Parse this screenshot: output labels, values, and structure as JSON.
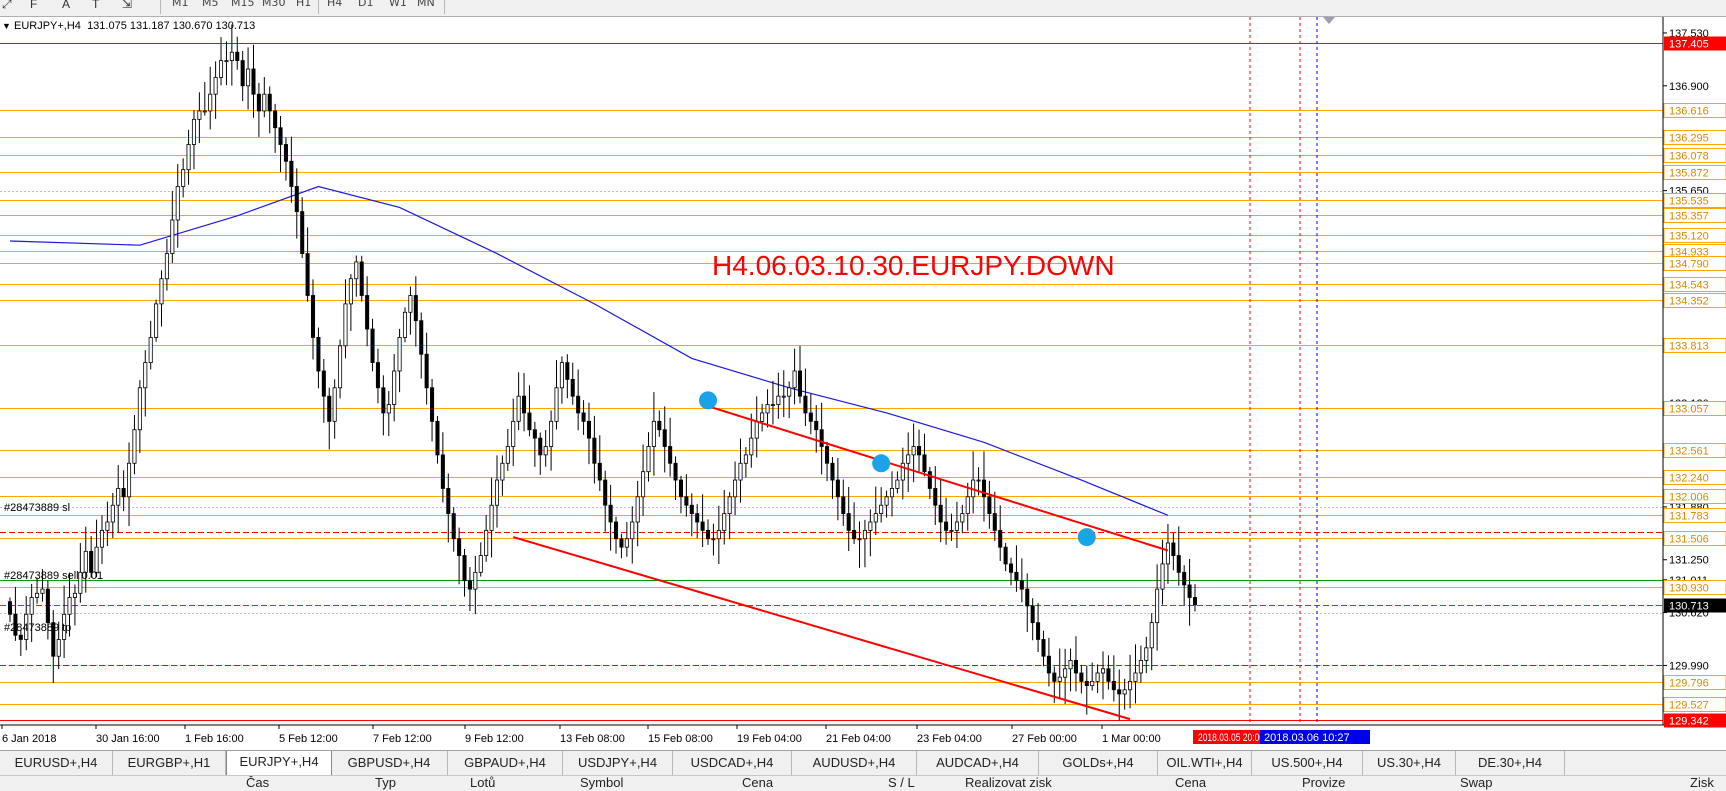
{
  "toolbar": {
    "timeframes": [
      "M1",
      "M5",
      "M15",
      "M30",
      "H1",
      "H4",
      "D1",
      "W1",
      "MN"
    ]
  },
  "chart_header": {
    "symbol": "EURJPY+,H4",
    "ohlc": "131.075 131.187 130.670 130.713"
  },
  "annotation_text": "H4.06.03.10.30.EURJPY.DOWN",
  "order_labels": {
    "sl": "#28473889 sl",
    "sell": "#28473889 sell 0.01",
    "tp": "#28473889 tp"
  },
  "colors": {
    "orange_level": "#ffa500",
    "red": "#ff0000",
    "ma": "#1a1ad8",
    "marker": "#1aa3e8",
    "green": "#009900"
  },
  "price_axis": {
    "scale_labels": [
      {
        "price": 137.53,
        "label": "137.530"
      },
      {
        "price": 136.9,
        "label": "136.900"
      },
      {
        "price": 135.65,
        "label": "135.650"
      },
      {
        "price": 133.12,
        "label": "133.120"
      },
      {
        "price": 131.88,
        "label": "131.880"
      },
      {
        "price": 131.25,
        "label": "131.250"
      },
      {
        "price": 131.011,
        "label": "131.011"
      },
      {
        "price": 130.62,
        "label": "130.620"
      },
      {
        "price": 129.99,
        "label": "129.990"
      }
    ],
    "orange_levels": [
      {
        "price": 136.616,
        "label": "136.616"
      },
      {
        "price": 136.295,
        "label": "136.295"
      },
      {
        "price": 136.078,
        "label": "136.078"
      },
      {
        "price": 135.872,
        "label": "135.872"
      },
      {
        "price": 135.535,
        "label": "135.535"
      },
      {
        "price": 135.357,
        "label": "135.357"
      },
      {
        "price": 135.12,
        "label": "135.120"
      },
      {
        "price": 134.933,
        "label": "134.933"
      },
      {
        "price": 134.79,
        "label": "134.790"
      },
      {
        "price": 134.543,
        "label": "134.543"
      },
      {
        "price": 134.352,
        "label": "134.352"
      },
      {
        "price": 133.813,
        "label": "133.813"
      },
      {
        "price": 133.057,
        "label": "133.057"
      },
      {
        "price": 132.561,
        "label": "132.561"
      },
      {
        "price": 132.24,
        "label": "132.240"
      },
      {
        "price": 132.006,
        "label": "132.006"
      },
      {
        "price": 131.783,
        "label": "131.783"
      },
      {
        "price": 131.506,
        "label": "131.506"
      },
      {
        "price": 130.93,
        "label": "130.930"
      },
      {
        "price": 129.796,
        "label": "129.796"
      },
      {
        "price": 129.527,
        "label": "129.527"
      }
    ],
    "red_levels": [
      {
        "price": 137.405,
        "label": "137.405"
      },
      {
        "price": 129.342,
        "label": "129.342"
      }
    ],
    "current_price": {
      "price": 130.713,
      "label": "130.713"
    }
  },
  "time_axis": {
    "labels": [
      "6 Jan 2018",
      "30 Jan 16:00",
      "1 Feb 16:00",
      "5 Feb 12:00",
      "7 Feb 12:00",
      "9 Feb 12:00",
      "13 Feb 08:00",
      "15 Feb 08:00",
      "19 Feb 04:00",
      "21 Feb 04:00",
      "23 Feb 04:00",
      "27 Feb 00:00",
      "1 Mar 00:00"
    ],
    "marker_red": "2018.03.05 20:00",
    "marker_blue": "2018.03.06 10:27"
  },
  "chart_data": {
    "type": "candlestick",
    "symbol": "EURJPY+",
    "timeframe": "H4",
    "ylim": [
      129.28,
      137.72
    ],
    "close_series": [
      130.6,
      130.35,
      130.3,
      130.6,
      130.8,
      130.85,
      130.9,
      130.5,
      130.1,
      130.3,
      130.6,
      130.8,
      130.85,
      131.1,
      131.35,
      131.1,
      131.4,
      131.6,
      131.7,
      131.9,
      132.1,
      132.0,
      132.4,
      132.8,
      133.3,
      133.6,
      133.9,
      134.3,
      134.6,
      134.9,
      135.3,
      135.7,
      135.9,
      136.2,
      136.5,
      136.6,
      136.6,
      136.8,
      137.0,
      137.2,
      137.2,
      137.3,
      137.2,
      136.9,
      137.1,
      136.8,
      136.6,
      136.8,
      136.6,
      136.4,
      136.2,
      136.0,
      135.7,
      135.4,
      134.9,
      134.4,
      133.9,
      133.5,
      133.2,
      132.9,
      133.3,
      133.8,
      134.3,
      134.6,
      134.8,
      134.4,
      134.0,
      133.6,
      133.3,
      133.0,
      133.1,
      133.5,
      133.9,
      134.2,
      134.4,
      134.1,
      133.7,
      133.3,
      132.9,
      132.5,
      132.1,
      131.8,
      131.5,
      131.3,
      131.0,
      130.9,
      131.1,
      131.3,
      131.6,
      131.9,
      132.2,
      132.4,
      132.6,
      132.9,
      133.2,
      133.0,
      132.8,
      132.7,
      132.5,
      132.6,
      132.9,
      133.3,
      133.6,
      133.4,
      133.2,
      133.0,
      132.9,
      132.7,
      132.4,
      132.2,
      131.9,
      131.7,
      131.5,
      131.4,
      131.5,
      131.7,
      132.0,
      132.3,
      132.6,
      132.9,
      132.8,
      132.6,
      132.4,
      132.2,
      132.0,
      131.9,
      131.8,
      131.7,
      131.6,
      131.5,
      131.5,
      131.6,
      131.8,
      132.0,
      132.2,
      132.4,
      132.5,
      132.7,
      132.9,
      133.0,
      133.1,
      133.1,
      133.2,
      133.2,
      133.3,
      133.5,
      133.2,
      133.0,
      132.9,
      132.8,
      132.6,
      132.4,
      132.2,
      132.0,
      131.8,
      131.6,
      131.5,
      131.5,
      131.6,
      131.7,
      131.8,
      131.9,
      132.0,
      132.1,
      132.2,
      132.4,
      132.5,
      132.6,
      132.5,
      132.3,
      132.1,
      131.9,
      131.7,
      131.6,
      131.6,
      131.7,
      131.8,
      132.0,
      132.2,
      132.2,
      132.0,
      131.8,
      131.6,
      131.4,
      131.2,
      131.1,
      131.0,
      130.9,
      130.7,
      130.5,
      130.3,
      130.1,
      129.9,
      129.8,
      129.85,
      129.95,
      130.05,
      129.9,
      129.8,
      129.75,
      129.8,
      129.9,
      129.95,
      129.8,
      129.7,
      129.65,
      129.7,
      129.8,
      129.9,
      130.05,
      130.2,
      130.5,
      130.9,
      131.2,
      131.45,
      131.3,
      131.1,
      130.95,
      130.8,
      130.713
    ],
    "moving_average": [
      {
        "bar": 0,
        "value": 135.05
      },
      {
        "bar": 24,
        "value": 135.0
      },
      {
        "bar": 42,
        "value": 135.35
      },
      {
        "bar": 57,
        "value": 135.7
      },
      {
        "bar": 72,
        "value": 135.45
      },
      {
        "bar": 90,
        "value": 134.9
      },
      {
        "bar": 108,
        "value": 134.3
      },
      {
        "bar": 126,
        "value": 133.65
      },
      {
        "bar": 144,
        "value": 133.3
      },
      {
        "bar": 162,
        "value": 133.0
      },
      {
        "bar": 180,
        "value": 132.65
      },
      {
        "bar": 198,
        "value": 132.2
      },
      {
        "bar": 214,
        "value": 131.78
      }
    ],
    "channel_lines": [
      {
        "from": {
          "bar": 129,
          "price": 133.08
        },
        "to": {
          "bar": 214,
          "price": 131.36
        }
      },
      {
        "from": {
          "bar": 93,
          "price": 131.52
        },
        "to": {
          "bar": 207,
          "price": 129.35
        }
      }
    ],
    "swing_markers": [
      {
        "bar": 129,
        "price": 133.15
      },
      {
        "bar": 161,
        "price": 132.4
      },
      {
        "bar": 199,
        "price": 131.52
      }
    ],
    "order_lines": {
      "sl": 131.58,
      "sell": 130.713,
      "tp": 129.99
    }
  },
  "tabs": [
    {
      "label": "EURUSD+,H4",
      "active": false
    },
    {
      "label": "EURGBP+,H1",
      "active": false
    },
    {
      "label": "EURJPY+,H4",
      "active": true
    },
    {
      "label": "GBPUSD+,H4",
      "active": false
    },
    {
      "label": "GBPAUD+,H4",
      "active": false
    },
    {
      "label": "USDJPY+,H4",
      "active": false
    },
    {
      "label": "USDCAD+,H4",
      "active": false
    },
    {
      "label": "AUDUSD+,H4",
      "active": false
    },
    {
      "label": "AUDCAD+,H4",
      "active": false
    },
    {
      "label": "GOLDs+,H4",
      "active": false
    },
    {
      "label": "OIL.WTI+,H4",
      "active": false
    },
    {
      "label": "US.500+,H4",
      "active": false
    },
    {
      "label": "US.30+,H4",
      "active": false
    },
    {
      "label": "DE.30+,H4",
      "active": false
    }
  ],
  "terminal_columns": [
    "Čas",
    "Typ",
    "Lotů",
    "Symbol",
    "Cena",
    "S / L",
    "Realizovat zisk",
    "Cena",
    "Provize",
    "Swap",
    "Zisk"
  ]
}
